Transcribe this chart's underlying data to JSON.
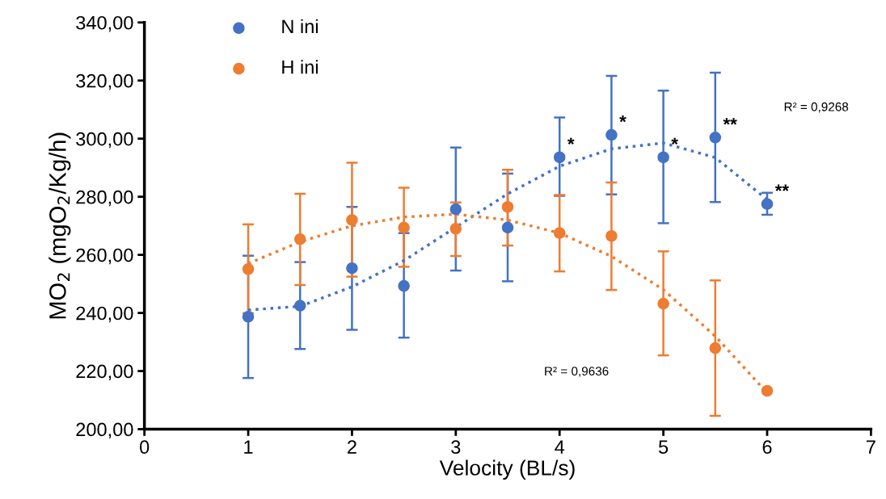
{
  "chart_data": {
    "type": "scatter",
    "xlabel": "Velocity (BL/s)",
    "ylabel": "MO$_{2}$ (mgO$_{2}$/Kg/h)",
    "xlim": [
      0,
      7
    ],
    "xticks": [
      0,
      1,
      2,
      3,
      4,
      5,
      6,
      7
    ],
    "ylim": [
      200,
      340
    ],
    "yticks": [
      {
        "value": 200,
        "label": "200,00"
      },
      {
        "value": 220,
        "label": "220,00"
      },
      {
        "value": 240,
        "label": "240,00"
      },
      {
        "value": 260,
        "label": "260,00"
      },
      {
        "value": 280,
        "label": "280,00"
      },
      {
        "value": 300,
        "label": "300,00"
      },
      {
        "value": 320,
        "label": "320,00"
      },
      {
        "value": 340,
        "label": "340,00"
      }
    ],
    "grid": false,
    "legend": "top left",
    "marker": "circle",
    "series": [
      {
        "name": "N ini",
        "color": "#4472c4",
        "x": [
          1,
          1.5,
          2,
          2.5,
          3,
          3.5,
          4,
          4.5,
          5,
          5.5,
          6
        ],
        "values": [
          238.7,
          242.5,
          255.4,
          249.3,
          275.7,
          269.4,
          293.6,
          301.3,
          293.6,
          300.4,
          277.5
        ],
        "errors": [
          [
            217.6,
            259.7
          ],
          [
            227.6,
            257.5
          ],
          [
            234.2,
            276.5
          ],
          [
            231.5,
            267.5
          ],
          [
            254.6,
            296.9
          ],
          [
            250.9,
            288.0
          ],
          [
            280.3,
            307.3
          ],
          [
            280.8,
            321.6
          ],
          [
            270.9,
            316.5
          ],
          [
            278.2,
            322.7
          ],
          [
            273.8,
            281.4
          ]
        ]
      },
      {
        "name": "H ini",
        "color": "#ed7d31",
        "x": [
          1,
          1.5,
          2,
          2.5,
          3,
          3.5,
          4,
          4.5,
          5,
          5.5,
          6
        ],
        "values": [
          255.1,
          265.4,
          272.0,
          269.4,
          269.0,
          276.5,
          267.5,
          266.5,
          243.2,
          227.9,
          213.2
        ],
        "errors": [
          [
            239.9,
            270.5
          ],
          [
            249.6,
            281.0
          ],
          [
            252.5,
            291.7
          ],
          [
            255.9,
            283.1
          ],
          [
            259.6,
            278.0
          ],
          [
            263.2,
            289.3
          ],
          [
            254.3,
            280.6
          ],
          [
            247.9,
            284.9
          ],
          [
            225.4,
            261.2
          ],
          [
            204.6,
            251.2
          ],
          null
        ]
      },
      {
        "type": "line",
        "color": "#4472c4",
        "line_style": "dotted",
        "marker": "none",
        "x": [
          1,
          1.5,
          2,
          2.5,
          3,
          3.5,
          4,
          4.5,
          5,
          5.5,
          6
        ],
        "values": [
          241,
          242.3,
          249,
          258,
          269.5,
          281,
          290.5,
          296.5,
          298.5,
          293.5,
          279
        ]
      },
      {
        "type": "line",
        "color": "#ed7d31",
        "line_style": "dotted",
        "marker": "none",
        "x": [
          1,
          1.5,
          2,
          2.5,
          3,
          3.5,
          4,
          4.5,
          5,
          5.5,
          6
        ],
        "values": [
          257,
          264.5,
          270,
          273,
          274,
          272,
          267.5,
          259.5,
          248,
          232,
          212.5
        ]
      }
    ],
    "annotations": [
      {
        "text": "*",
        "x": 4,
        "y": 293.6
      },
      {
        "text": "*",
        "x": 4.5,
        "y": 301.3
      },
      {
        "text": "*",
        "x": 5,
        "y": 293.6
      },
      {
        "text": "**",
        "x": 5.5,
        "y": 300.4
      },
      {
        "text": "**",
        "x": 6,
        "y": 277.5
      },
      "R² = 0,9268",
      "R² = 0,9636"
    ]
  }
}
